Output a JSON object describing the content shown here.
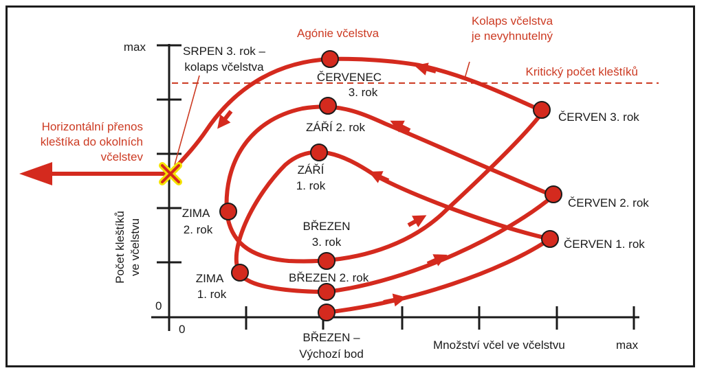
{
  "axes": {
    "y_max": "max",
    "y_zero": "0",
    "x_zero": "0",
    "x_label": "Množství včel ve včelstvu",
    "x_max": "max",
    "y_label_line1": "Počet kleštíků",
    "y_label_line2": "ve včelstvu"
  },
  "threshold": {
    "label": "Kritický počet kleštíků"
  },
  "annotations": {
    "agony": "Agónie včelstva",
    "collapse_line1": "Kolaps včelstva",
    "collapse_line2": "je nevyhnutelný",
    "transfer_line1": "Horizontální přenos",
    "transfer_line2": "kleštíka do okolních",
    "transfer_line3": "včelstev"
  },
  "points": {
    "start_line1": "BŘEZEN –",
    "start_line2": "Výchozí bod",
    "june1": "ČERVEN 1. rok",
    "sept1_line1": "ZÁŘÍ",
    "sept1_line2": "1. rok",
    "winter1_line1": "ZIMA",
    "winter1_line2": "1. rok",
    "march2": "BŘEZEN 2. rok",
    "june2": "ČERVEN 2. rok",
    "sept2": "ZÁŘÍ 2. rok",
    "winter2_line1": "ZIMA",
    "winter2_line2": "2. rok",
    "march3_line1": "BŘEZEN",
    "march3_line2": "3. rok",
    "june3": "ČERVEN 3. rok",
    "july3_line1": "ČERVENEC",
    "july3_line2": "3. rok",
    "aug3_line1": "SRPEN 3. rok –",
    "aug3_line2": "kolaps včelstva"
  },
  "colors": {
    "curve": "#d42a1e",
    "annotation": "#cc3a22",
    "axis": "#1a1a1a",
    "collapse_marker": "#f4e300"
  }
}
